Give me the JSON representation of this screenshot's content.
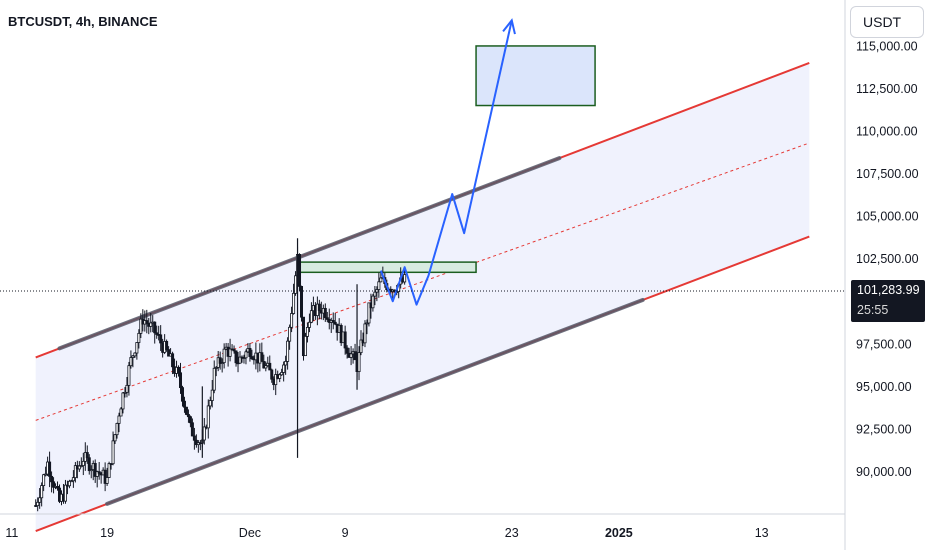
{
  "header": {
    "title": "BTCUSDT, 4h, BINANCE"
  },
  "axis": {
    "unit": "USDT"
  },
  "price_tag": {
    "price": "101,283.99",
    "countdown": "25:55"
  },
  "colors": {
    "up": "#26a69a",
    "down": "#131722",
    "channel": "#e53935",
    "channel_fill": "#eef1fd",
    "projection": "#2962ff",
    "box_border": "#1b5e20",
    "box_fill": "#dbe5fb",
    "zone_fill": "#d7ebe0"
  },
  "chart_data": {
    "type": "candlestick",
    "title": "BTCUSDT, 4h, BINANCE",
    "timeframe": "4h",
    "ylim": [
      87500,
      117700
    ],
    "x_ticks": [
      "11",
      "19",
      "Dec",
      "9",
      "23",
      "2025",
      "13"
    ],
    "x_tick_dates": [
      "2024-11-11",
      "2024-11-19",
      "2024-12-01",
      "2024-12-09",
      "2024-12-23",
      "2025-01-01",
      "2025-01-13"
    ],
    "xlim": [
      "2024-11-10",
      "2025-01-20"
    ],
    "y_ticks": [
      {
        "value": 115000,
        "label": "115,000.00"
      },
      {
        "value": 112500,
        "label": "112,500.00"
      },
      {
        "value": 110000,
        "label": "110,000.00"
      },
      {
        "value": 107500,
        "label": "107,500.00"
      },
      {
        "value": 105000,
        "label": "105,000.00"
      },
      {
        "value": 102500,
        "label": "102,500.00"
      },
      {
        "value": 97500,
        "label": "97,500.00"
      },
      {
        "value": 95000,
        "label": "95,000.00"
      },
      {
        "value": 92500,
        "label": "92,500.00"
      },
      {
        "value": 90000,
        "label": "90,000.00"
      }
    ],
    "last_price": 101283.99,
    "price_path": [
      [
        "2024-11-13",
        88000
      ],
      [
        "2024-11-14",
        90500
      ],
      [
        "2024-11-15",
        88200
      ],
      [
        "2024-11-17",
        90800
      ],
      [
        "2024-11-19",
        89500
      ],
      [
        "2024-11-20",
        93500
      ],
      [
        "2024-11-21",
        96500
      ],
      [
        "2024-11-22",
        99000
      ],
      [
        "2024-11-23",
        98200
      ],
      [
        "2024-11-24",
        97000
      ],
      [
        "2024-11-25",
        95500
      ],
      [
        "2024-11-26",
        92500
      ],
      [
        "2024-11-27",
        91500
      ],
      [
        "2024-11-28",
        95800
      ],
      [
        "2024-11-29",
        97200
      ],
      [
        "2024-11-30",
        96500
      ],
      [
        "2024-12-01",
        97200
      ],
      [
        "2024-12-02",
        96400
      ],
      [
        "2024-12-03",
        95500
      ],
      [
        "2024-12-04",
        96500
      ],
      [
        "2024-12-05",
        102500
      ],
      [
        "2024-12-05T12:00",
        97000
      ],
      [
        "2024-12-06",
        99200
      ],
      [
        "2024-12-07",
        99600
      ],
      [
        "2024-12-08",
        99000
      ],
      [
        "2024-12-09",
        97500
      ],
      [
        "2024-12-10",
        96200
      ],
      [
        "2024-12-11",
        99500
      ],
      [
        "2024-12-12",
        101200
      ],
      [
        "2024-12-13",
        100800
      ],
      [
        "2024-12-14",
        101200
      ]
    ],
    "extremes": [
      {
        "date": "2024-12-05",
        "high": 103700,
        "low": 90800
      },
      {
        "date": "2024-12-10",
        "high": 101000,
        "low": 94800
      },
      {
        "date": "2024-11-27",
        "high": 95000,
        "low": 90800
      }
    ],
    "channel": {
      "upper": [
        [
          "2024-11-13",
          96700
        ],
        [
          "2025-01-17",
          114000
        ]
      ],
      "middle": [
        [
          "2024-11-13",
          93000
        ],
        [
          "2025-01-17",
          109300
        ]
      ],
      "lower": [
        [
          "2024-11-13",
          86500
        ],
        [
          "2025-01-17",
          103800
        ]
      ]
    },
    "trendline_touches": [
      {
        "from": "2024-11-15",
        "to": "2024-11-22",
        "line": "upper"
      },
      {
        "from": "2024-11-22",
        "to": "2024-12-05",
        "line": "upper"
      },
      {
        "from": "2024-12-05",
        "to": "2024-12-27",
        "line": "upper"
      },
      {
        "from": "2024-11-19",
        "to": "2025-01-03",
        "line": "lower"
      }
    ],
    "zones": [
      {
        "name": "target",
        "from": "2024-12-20",
        "to": "2024-12-30",
        "top": 115000,
        "bottom": 111500
      },
      {
        "name": "resistance",
        "from": "2024-12-05",
        "to": "2024-12-20",
        "top": 102300,
        "bottom": 101700
      }
    ],
    "projection_path": [
      [
        "2024-12-12",
        101800
      ],
      [
        "2024-12-13",
        100000
      ],
      [
        "2024-12-14",
        102000
      ],
      [
        "2024-12-15",
        99800
      ],
      [
        "2024-12-16",
        101500
      ],
      [
        "2024-12-18",
        106300
      ],
      [
        "2024-12-19",
        104000
      ],
      [
        "2024-12-23",
        116500
      ]
    ]
  }
}
